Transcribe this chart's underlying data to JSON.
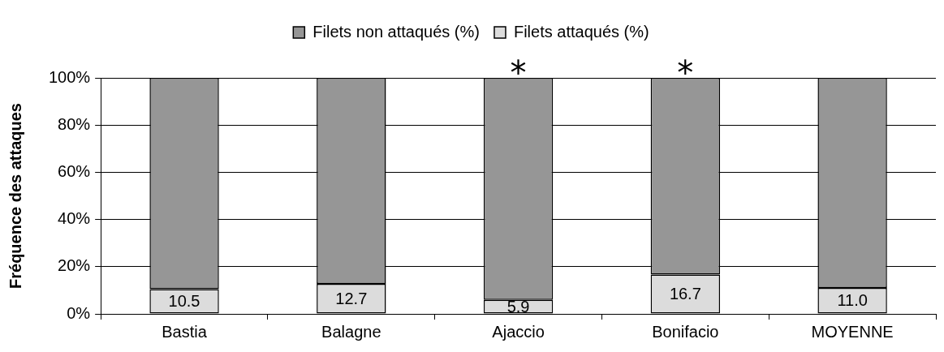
{
  "chart_data": {
    "type": "bar",
    "stacked": true,
    "categories": [
      "Bastia",
      "Balagne",
      "Ajaccio",
      "Bonifacio",
      "MOYENNE"
    ],
    "series": [
      {
        "name": "Filets attaqués (%)",
        "color": "#dcdcdc",
        "values": [
          10.5,
          12.7,
          5.9,
          16.7,
          11.0
        ],
        "value_labels": [
          "10.5",
          "12.7",
          "5.9",
          "16.7",
          "11.0"
        ]
      },
      {
        "name": "Filets non attaqués (%)",
        "color": "#969696",
        "values": [
          89.5,
          87.3,
          94.1,
          83.3,
          89.0
        ]
      }
    ],
    "ylabel": "Fréquence des attaques",
    "ylim": [
      0,
      100
    ],
    "yticks": [
      {
        "value": 0,
        "label": "0%"
      },
      {
        "value": 20,
        "label": "20%"
      },
      {
        "value": 40,
        "label": "40%"
      },
      {
        "value": 60,
        "label": "60%"
      },
      {
        "value": 80,
        "label": "80%"
      },
      {
        "value": 100,
        "label": "100%"
      }
    ],
    "grid": "y",
    "legend": "top",
    "annotations": [
      {
        "text": "*",
        "x": "Ajaccio",
        "y": 100
      },
      {
        "text": "*",
        "x": "Bonifacio",
        "y": 100
      }
    ]
  }
}
